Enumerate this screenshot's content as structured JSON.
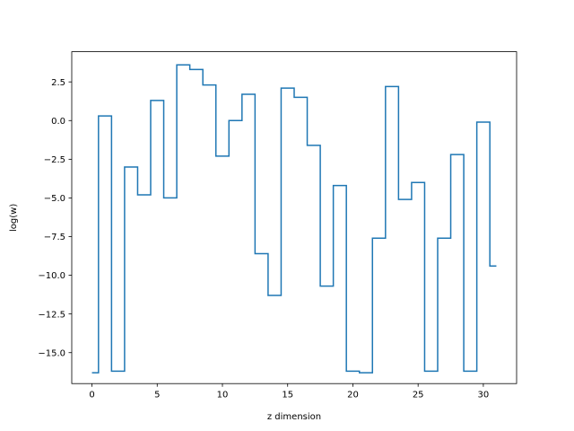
{
  "chart_data": {
    "type": "line",
    "drawstyle": "steps-mid",
    "title": "",
    "xlabel": "z dimension",
    "ylabel": "log(w)",
    "xlim": [
      -1.55,
      32.55
    ],
    "ylim": [
      -17.0,
      4.45
    ],
    "xticks": [
      0,
      5,
      10,
      15,
      20,
      25,
      30
    ],
    "xtick_labels": [
      "0",
      "5",
      "10",
      "15",
      "20",
      "25",
      "30"
    ],
    "yticks": [
      -15.0,
      -12.5,
      -10.0,
      -7.5,
      -5.0,
      -2.5,
      0.0,
      2.5
    ],
    "ytick_labels": [
      "−15.0",
      "−12.5",
      "−10.0",
      "−7.5",
      "−5.0",
      "−2.5",
      "0.0",
      "2.5"
    ],
    "grid": false,
    "series": [
      {
        "color": "#1f77b4",
        "x": [
          0,
          1,
          2,
          3,
          4,
          5,
          6,
          7,
          8,
          9,
          10,
          11,
          12,
          13,
          14,
          15,
          16,
          17,
          18,
          19,
          20,
          21,
          22,
          23,
          24,
          25,
          26,
          27,
          28,
          29,
          30,
          31
        ],
        "y": [
          -16.3,
          0.3,
          -16.2,
          -3.0,
          -4.8,
          1.3,
          -5.0,
          3.6,
          3.3,
          2.3,
          -2.3,
          0.0,
          1.7,
          -8.6,
          -11.3,
          2.1,
          1.5,
          -1.6,
          -10.7,
          -4.2,
          -16.2,
          -16.3,
          -7.6,
          2.2,
          -5.1,
          -4.0,
          -16.2,
          -7.6,
          -2.2,
          -16.2,
          -0.1,
          -9.4
        ]
      }
    ]
  }
}
